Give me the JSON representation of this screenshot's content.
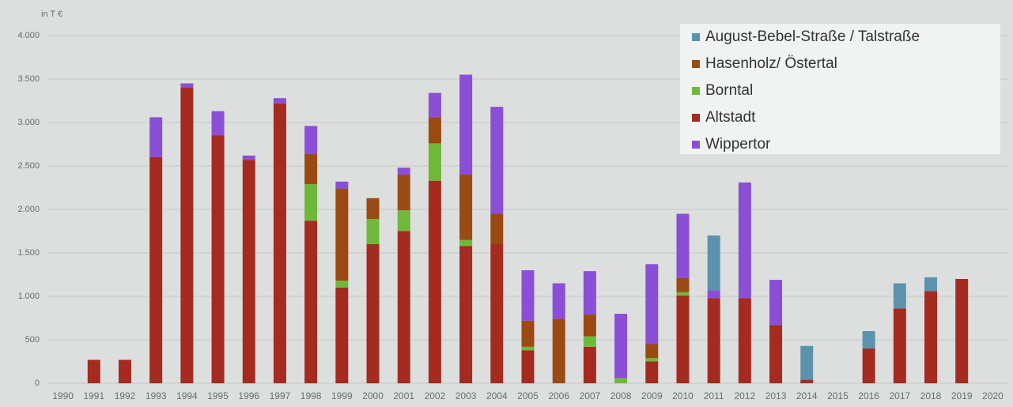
{
  "chart_data": {
    "type": "stacked-bar",
    "y_label": "in T €",
    "categories": [
      "1990",
      "1991",
      "1992",
      "1993",
      "1994",
      "1995",
      "1996",
      "1997",
      "1998",
      "1999",
      "2000",
      "2001",
      "2002",
      "2003",
      "2004",
      "2005",
      "2006",
      "2007",
      "2008",
      "2009",
      "2010",
      "2011",
      "2012",
      "2013",
      "2014",
      "2015",
      "2016",
      "2017",
      "2018",
      "2019",
      "2020"
    ],
    "series": [
      {
        "name": "August-Bebel-Straße / Talstraße",
        "color": "#5b93ad",
        "values": [
          null,
          null,
          null,
          null,
          null,
          null,
          null,
          null,
          null,
          null,
          null,
          null,
          null,
          null,
          null,
          null,
          null,
          null,
          null,
          null,
          null,
          630,
          null,
          null,
          390,
          null,
          200,
          290,
          160,
          null,
          null
        ]
      },
      {
        "name": "Hasenholz/ Östertal",
        "color": "#9a4a12",
        "values": [
          null,
          null,
          null,
          null,
          null,
          null,
          null,
          null,
          350,
          1060,
          240,
          410,
          300,
          750,
          350,
          300,
          740,
          250,
          null,
          160,
          160,
          null,
          null,
          null,
          null,
          null,
          null,
          null,
          null,
          null,
          null
        ]
      },
      {
        "name": "Borntal",
        "color": "#6fb83a",
        "values": [
          null,
          null,
          null,
          null,
          null,
          null,
          null,
          null,
          420,
          80,
          290,
          240,
          430,
          70,
          null,
          40,
          null,
          120,
          60,
          40,
          40,
          null,
          null,
          null,
          null,
          null,
          null,
          null,
          null,
          null,
          null
        ]
      },
      {
        "name": "Altstadt",
        "color": "#a52a1f",
        "values": [
          null,
          270,
          270,
          2600,
          3400,
          2850,
          2570,
          3220,
          1870,
          1100,
          1600,
          1750,
          2330,
          1580,
          1600,
          380,
          null,
          420,
          null,
          250,
          1010,
          980,
          980,
          670,
          40,
          null,
          400,
          860,
          1060,
          1200,
          null
        ]
      },
      {
        "name": "Wippertor",
        "color": "#8a4fd6",
        "values": [
          null,
          null,
          null,
          460,
          50,
          280,
          50,
          60,
          320,
          80,
          null,
          80,
          280,
          1150,
          1230,
          580,
          410,
          500,
          740,
          920,
          740,
          90,
          1330,
          520,
          null,
          null,
          null,
          null,
          null,
          null,
          null
        ]
      }
    ],
    "ylim": [
      0,
      4000
    ],
    "yticks": [
      0,
      500,
      {
        "value": 1000,
        "label": "1.000"
      },
      {
        "value": 1500,
        "label": "1.500"
      },
      {
        "value": 2000,
        "label": "2.000"
      },
      {
        "value": 2500,
        "label": "2.500"
      },
      {
        "value": 3000,
        "label": "3.000"
      },
      {
        "value": 3500,
        "label": "3.500"
      },
      {
        "value": 4000,
        "label": "4.000"
      }
    ],
    "grid": true
  }
}
